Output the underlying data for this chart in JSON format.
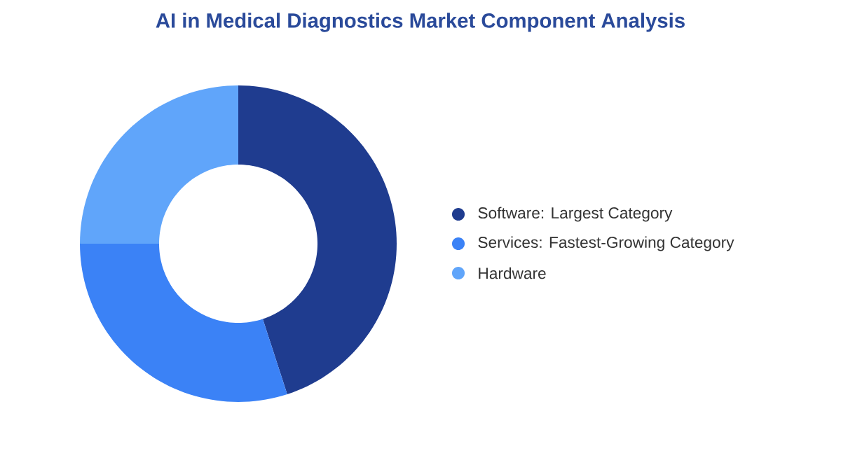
{
  "chart_data": {
    "type": "donut",
    "title": "AI in Medical Diagnostics Market Component Analysis",
    "categories": [
      "Software:  Largest Category",
      "Services:  Fastest-Growing Category",
      "Hardware"
    ],
    "values": [
      45,
      30,
      25
    ],
    "colors": [
      "#1f3c8f",
      "#3b82f6",
      "#60a5fa"
    ],
    "legend": "right"
  }
}
